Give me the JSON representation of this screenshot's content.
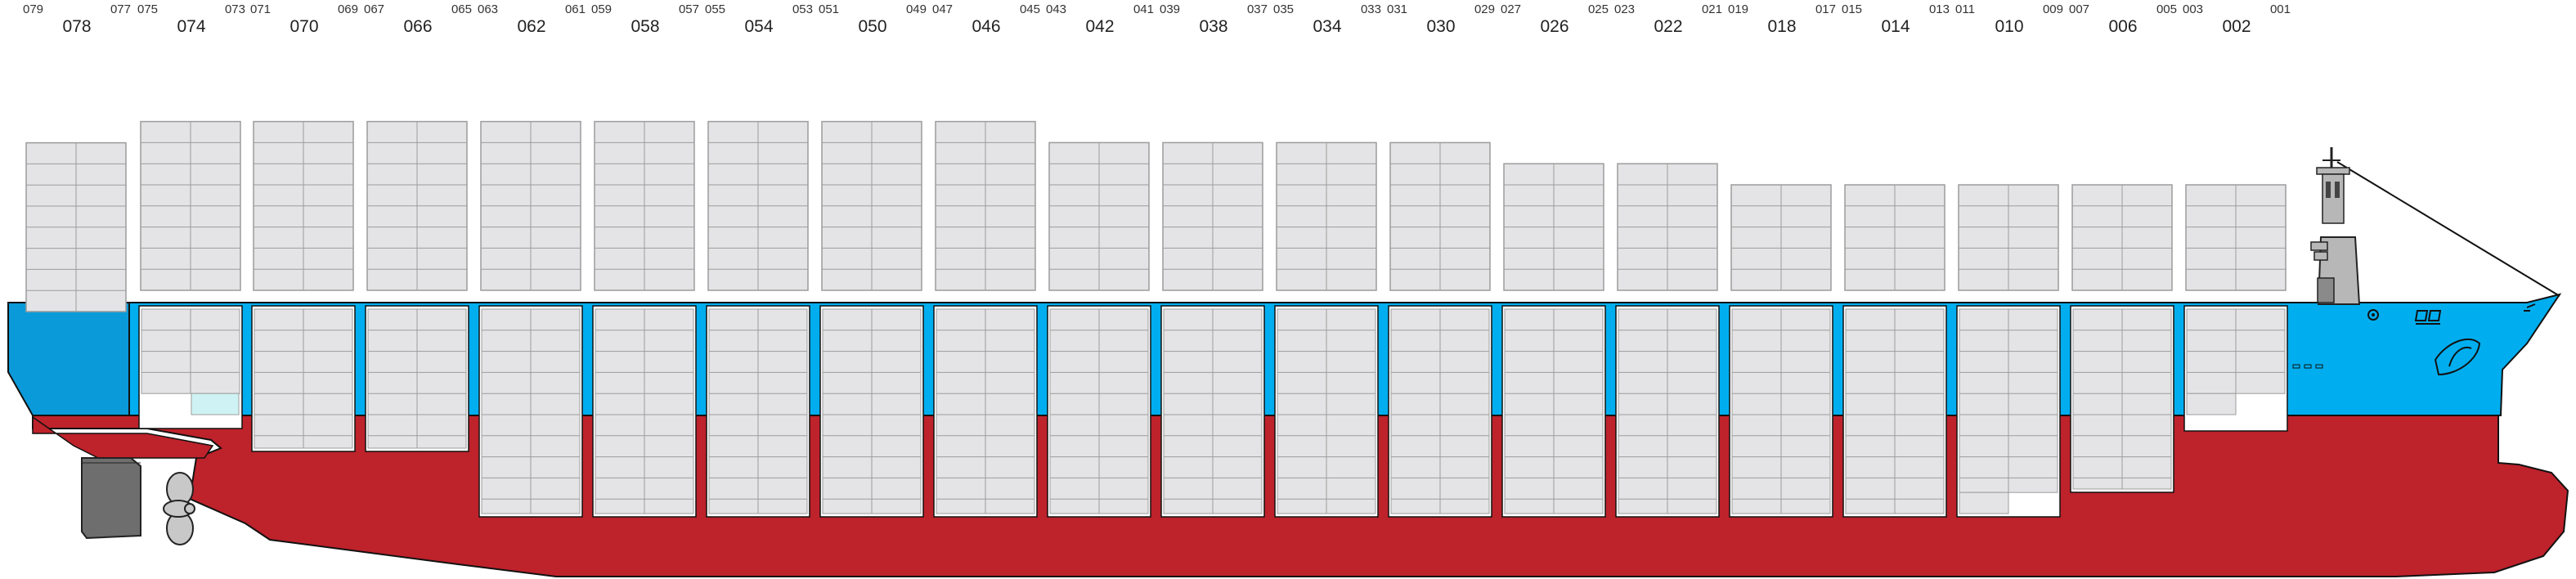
{
  "bays": [
    {
      "main": "078",
      "sub_a": "079",
      "sub_b": "077",
      "above_tiers": 8
    },
    {
      "main": "074",
      "sub_a": "075",
      "sub_b": "073",
      "above_tiers": 8
    },
    {
      "main": "070",
      "sub_a": "071",
      "sub_b": "069",
      "above_tiers": 8
    },
    {
      "main": "066",
      "sub_a": "067",
      "sub_b": "065",
      "above_tiers": 8
    },
    {
      "main": "062",
      "sub_a": "063",
      "sub_b": "061",
      "above_tiers": 8
    },
    {
      "main": "058",
      "sub_a": "059",
      "sub_b": "057",
      "above_tiers": 8
    },
    {
      "main": "054",
      "sub_a": "055",
      "sub_b": "053",
      "above_tiers": 8
    },
    {
      "main": "050",
      "sub_a": "051",
      "sub_b": "049",
      "above_tiers": 8
    },
    {
      "main": "046",
      "sub_a": "047",
      "sub_b": "045",
      "above_tiers": 8
    },
    {
      "main": "042",
      "sub_a": "043",
      "sub_b": "041",
      "above_tiers": 7
    },
    {
      "main": "038",
      "sub_a": "039",
      "sub_b": "037",
      "above_tiers": 7
    },
    {
      "main": "034",
      "sub_a": "035",
      "sub_b": "033",
      "above_tiers": 7
    },
    {
      "main": "030",
      "sub_a": "031",
      "sub_b": "029",
      "above_tiers": 7
    },
    {
      "main": "026",
      "sub_a": "027",
      "sub_b": "025",
      "above_tiers": 6
    },
    {
      "main": "022",
      "sub_a": "023",
      "sub_b": "021",
      "above_tiers": 6
    },
    {
      "main": "018",
      "sub_a": "019",
      "sub_b": "017",
      "above_tiers": 5
    },
    {
      "main": "014",
      "sub_a": "015",
      "sub_b": "013",
      "above_tiers": 5
    },
    {
      "main": "010",
      "sub_a": "011",
      "sub_b": "009",
      "above_tiers": 5
    },
    {
      "main": "006",
      "sub_a": "007",
      "sub_b": "005",
      "above_tiers": 5
    },
    {
      "main": "002",
      "sub_a": "003",
      "sub_b": "001",
      "above_tiers": 5
    }
  ],
  "colors": {
    "hull_red": "#BE222B",
    "hull_blue_aft": "#0A9AD9",
    "hull_blue": "#00AEEF",
    "container_fill": "#E4E4E6",
    "container_stroke": "#9C9C9C",
    "highlight_container": "#CFF3F4",
    "rudder": "#6E6E6E",
    "propeller": "#C8C8C8",
    "bridge": "#B7B7B7"
  }
}
